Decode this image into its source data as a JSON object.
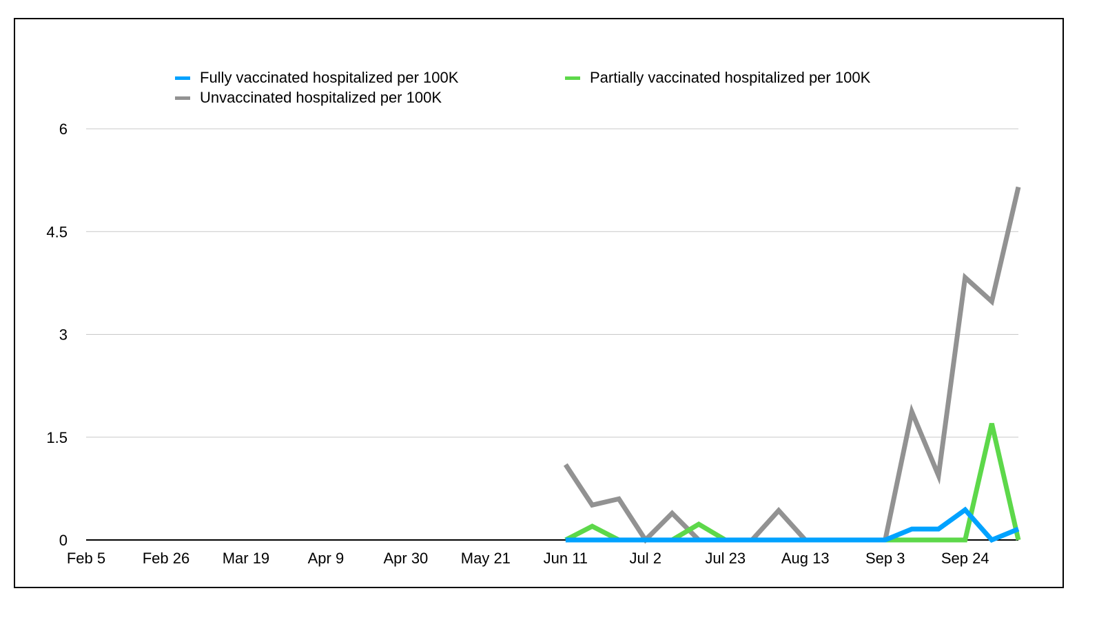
{
  "chart_data": {
    "type": "line",
    "title": "",
    "xlabel": "",
    "ylabel": "",
    "ylim": [
      0,
      6
    ],
    "yticks": [
      0,
      1.5,
      3,
      4.5,
      6
    ],
    "ytick_labels": [
      "0",
      "1.5",
      "3",
      "4.5",
      "6"
    ],
    "xtick_labels": [
      "Feb 5",
      "Feb 26",
      "Mar 19",
      "Apr 9",
      "Apr 30",
      "May 21",
      "Jun 11",
      "Jul 2",
      "Jul 23",
      "Aug 13",
      "Sep 3",
      "Sep 24"
    ],
    "x_weeks_from_feb5": [
      18,
      19,
      20,
      21,
      22,
      23,
      24,
      25,
      26,
      27,
      28,
      29,
      30,
      31,
      32,
      33,
      34,
      35
    ],
    "x_total_weeks": 35,
    "grid": true,
    "legend_placement": "top",
    "series": [
      {
        "name": "Fully vaccinated hospitalized per 100K",
        "color": "#00a2ff",
        "values": [
          0,
          0,
          0,
          0,
          0,
          0,
          0,
          0,
          0,
          0,
          0,
          0,
          0,
          0.16,
          0.16,
          0.44,
          0,
          0.16
        ]
      },
      {
        "name": "Partially vaccinated hospitalized per 100K",
        "color": "#5dd84a",
        "values": [
          0,
          0.2,
          0,
          0,
          0,
          0.23,
          0,
          0,
          0,
          0,
          0,
          0,
          0,
          0,
          0,
          0,
          1.7,
          0
        ]
      },
      {
        "name": "Unvaccinated hospitalized per 100K",
        "color": "#929292",
        "values": [
          1.1,
          0.51,
          0.6,
          0,
          0.39,
          0,
          0,
          0,
          0.43,
          0,
          0,
          0,
          0,
          1.87,
          0.94,
          3.83,
          3.48,
          5.15
        ]
      }
    ]
  }
}
